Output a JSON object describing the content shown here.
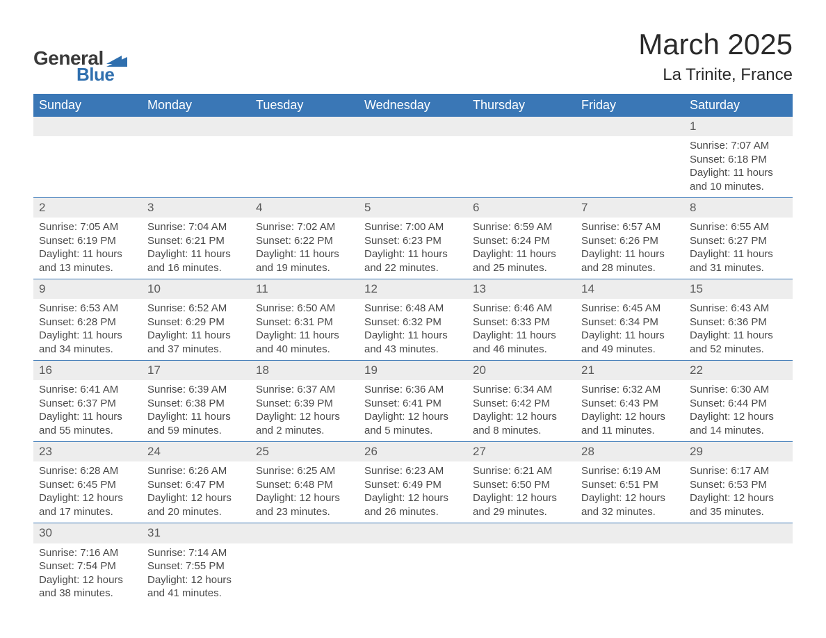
{
  "logo": {
    "text1": "General",
    "text2": "Blue",
    "mark_color": "#2f6fae"
  },
  "title": "March 2025",
  "location": "La Trinite, France",
  "colors": {
    "header_bg": "#3a77b6",
    "header_fg": "#ffffff",
    "daynum_bg": "#ededed",
    "row_divider": "#3a77b6",
    "text": "#4a4a4a",
    "background": "#ffffff"
  },
  "typography": {
    "title_fontsize": 42,
    "location_fontsize": 24,
    "header_fontsize": 18,
    "daynum_fontsize": 17,
    "body_fontsize": 15
  },
  "weekdays": [
    "Sunday",
    "Monday",
    "Tuesday",
    "Wednesday",
    "Thursday",
    "Friday",
    "Saturday"
  ],
  "weeks": [
    [
      null,
      null,
      null,
      null,
      null,
      null,
      {
        "n": "1",
        "sunrise": "7:07 AM",
        "sunset": "6:18 PM",
        "dl1": "11 hours",
        "dl2": "and 10 minutes."
      }
    ],
    [
      {
        "n": "2",
        "sunrise": "7:05 AM",
        "sunset": "6:19 PM",
        "dl1": "11 hours",
        "dl2": "and 13 minutes."
      },
      {
        "n": "3",
        "sunrise": "7:04 AM",
        "sunset": "6:21 PM",
        "dl1": "11 hours",
        "dl2": "and 16 minutes."
      },
      {
        "n": "4",
        "sunrise": "7:02 AM",
        "sunset": "6:22 PM",
        "dl1": "11 hours",
        "dl2": "and 19 minutes."
      },
      {
        "n": "5",
        "sunrise": "7:00 AM",
        "sunset": "6:23 PM",
        "dl1": "11 hours",
        "dl2": "and 22 minutes."
      },
      {
        "n": "6",
        "sunrise": "6:59 AM",
        "sunset": "6:24 PM",
        "dl1": "11 hours",
        "dl2": "and 25 minutes."
      },
      {
        "n": "7",
        "sunrise": "6:57 AM",
        "sunset": "6:26 PM",
        "dl1": "11 hours",
        "dl2": "and 28 minutes."
      },
      {
        "n": "8",
        "sunrise": "6:55 AM",
        "sunset": "6:27 PM",
        "dl1": "11 hours",
        "dl2": "and 31 minutes."
      }
    ],
    [
      {
        "n": "9",
        "sunrise": "6:53 AM",
        "sunset": "6:28 PM",
        "dl1": "11 hours",
        "dl2": "and 34 minutes."
      },
      {
        "n": "10",
        "sunrise": "6:52 AM",
        "sunset": "6:29 PM",
        "dl1": "11 hours",
        "dl2": "and 37 minutes."
      },
      {
        "n": "11",
        "sunrise": "6:50 AM",
        "sunset": "6:31 PM",
        "dl1": "11 hours",
        "dl2": "and 40 minutes."
      },
      {
        "n": "12",
        "sunrise": "6:48 AM",
        "sunset": "6:32 PM",
        "dl1": "11 hours",
        "dl2": "and 43 minutes."
      },
      {
        "n": "13",
        "sunrise": "6:46 AM",
        "sunset": "6:33 PM",
        "dl1": "11 hours",
        "dl2": "and 46 minutes."
      },
      {
        "n": "14",
        "sunrise": "6:45 AM",
        "sunset": "6:34 PM",
        "dl1": "11 hours",
        "dl2": "and 49 minutes."
      },
      {
        "n": "15",
        "sunrise": "6:43 AM",
        "sunset": "6:36 PM",
        "dl1": "11 hours",
        "dl2": "and 52 minutes."
      }
    ],
    [
      {
        "n": "16",
        "sunrise": "6:41 AM",
        "sunset": "6:37 PM",
        "dl1": "11 hours",
        "dl2": "and 55 minutes."
      },
      {
        "n": "17",
        "sunrise": "6:39 AM",
        "sunset": "6:38 PM",
        "dl1": "11 hours",
        "dl2": "and 59 minutes."
      },
      {
        "n": "18",
        "sunrise": "6:37 AM",
        "sunset": "6:39 PM",
        "dl1": "12 hours",
        "dl2": "and 2 minutes."
      },
      {
        "n": "19",
        "sunrise": "6:36 AM",
        "sunset": "6:41 PM",
        "dl1": "12 hours",
        "dl2": "and 5 minutes."
      },
      {
        "n": "20",
        "sunrise": "6:34 AM",
        "sunset": "6:42 PM",
        "dl1": "12 hours",
        "dl2": "and 8 minutes."
      },
      {
        "n": "21",
        "sunrise": "6:32 AM",
        "sunset": "6:43 PM",
        "dl1": "12 hours",
        "dl2": "and 11 minutes."
      },
      {
        "n": "22",
        "sunrise": "6:30 AM",
        "sunset": "6:44 PM",
        "dl1": "12 hours",
        "dl2": "and 14 minutes."
      }
    ],
    [
      {
        "n": "23",
        "sunrise": "6:28 AM",
        "sunset": "6:45 PM",
        "dl1": "12 hours",
        "dl2": "and 17 minutes."
      },
      {
        "n": "24",
        "sunrise": "6:26 AM",
        "sunset": "6:47 PM",
        "dl1": "12 hours",
        "dl2": "and 20 minutes."
      },
      {
        "n": "25",
        "sunrise": "6:25 AM",
        "sunset": "6:48 PM",
        "dl1": "12 hours",
        "dl2": "and 23 minutes."
      },
      {
        "n": "26",
        "sunrise": "6:23 AM",
        "sunset": "6:49 PM",
        "dl1": "12 hours",
        "dl2": "and 26 minutes."
      },
      {
        "n": "27",
        "sunrise": "6:21 AM",
        "sunset": "6:50 PM",
        "dl1": "12 hours",
        "dl2": "and 29 minutes."
      },
      {
        "n": "28",
        "sunrise": "6:19 AM",
        "sunset": "6:51 PM",
        "dl1": "12 hours",
        "dl2": "and 32 minutes."
      },
      {
        "n": "29",
        "sunrise": "6:17 AM",
        "sunset": "6:53 PM",
        "dl1": "12 hours",
        "dl2": "and 35 minutes."
      }
    ],
    [
      {
        "n": "30",
        "sunrise": "7:16 AM",
        "sunset": "7:54 PM",
        "dl1": "12 hours",
        "dl2": "and 38 minutes."
      },
      {
        "n": "31",
        "sunrise": "7:14 AM",
        "sunset": "7:55 PM",
        "dl1": "12 hours",
        "dl2": "and 41 minutes."
      },
      null,
      null,
      null,
      null,
      null
    ]
  ],
  "labels": {
    "sunrise": "Sunrise:",
    "sunset": "Sunset:",
    "daylight": "Daylight:"
  }
}
